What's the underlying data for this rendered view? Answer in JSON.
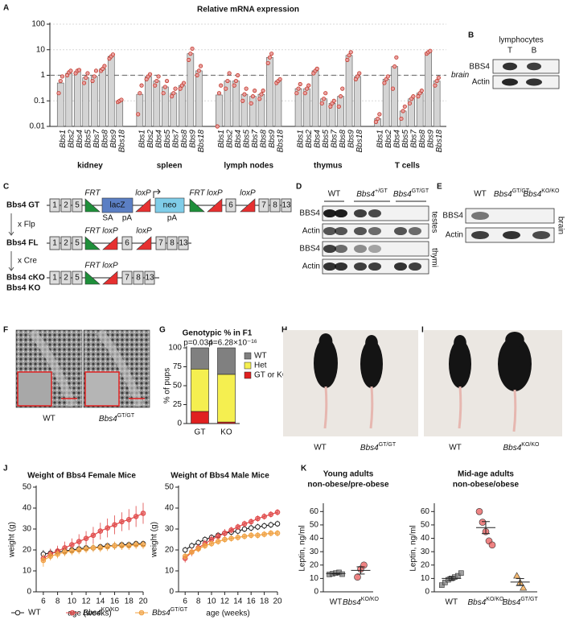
{
  "panels": [
    "A",
    "B",
    "C",
    "D",
    "E",
    "F",
    "G",
    "H",
    "I",
    "J",
    "K"
  ],
  "chart_data": [
    {
      "type": "bar",
      "title": "Relative mRNA expression",
      "log_scale": true,
      "grid": true,
      "ylim": [
        0.01,
        100
      ],
      "yticks": [
        0.01,
        0.1,
        1,
        10,
        100
      ],
      "reference_line": 1,
      "reference_label": "brain",
      "color": "#d4d4d4",
      "point_color": "#c0392b",
      "categories": [
        "Bbs1",
        "Bbs2",
        "Bbs4",
        "Bbs5",
        "Bbs7",
        "Bbs8",
        "Bbs9",
        "Bbs18"
      ],
      "series": [
        {
          "name": "kidney",
          "values": [
            0.5,
            1.2,
            1.4,
            0.8,
            0.9,
            1.8,
            5.5,
            0.1
          ],
          "points": [
            [
              0.2,
              0.6,
              0.9
            ],
            [
              1.0,
              1.3,
              1.5
            ],
            [
              1.2,
              1.5,
              1.6
            ],
            [
              0.5,
              0.8,
              1.2
            ],
            [
              0.6,
              0.9,
              1.5
            ],
            [
              1.5,
              1.8,
              2.3
            ],
            [
              4.5,
              5.5,
              6.5
            ],
            [
              0.09,
              0.1,
              0.11
            ]
          ]
        },
        {
          "name": "spleen",
          "values": [
            0.18,
            0.9,
            0.6,
            0.35,
            0.2,
            0.4,
            7,
            1.5
          ],
          "points": [
            [
              0.03,
              0.2,
              0.4
            ],
            [
              0.7,
              0.9,
              1.1
            ],
            [
              0.4,
              0.6,
              0.9
            ],
            [
              0.2,
              0.35,
              0.6
            ],
            [
              0.15,
              0.2,
              0.3
            ],
            [
              0.3,
              0.4,
              0.5
            ],
            [
              4,
              7,
              11
            ],
            [
              1,
              1.5,
              2.3
            ]
          ]
        },
        {
          "name": "lymph nodes",
          "values": [
            0.17,
            0.6,
            0.6,
            0.18,
            0.15,
            0.18,
            5,
            0.6
          ],
          "points": [
            [
              0.01,
              0.2,
              0.4
            ],
            [
              0.3,
              0.6,
              1.2
            ],
            [
              0.4,
              0.6,
              1
            ],
            [
              0.1,
              0.18,
              0.3
            ],
            [
              0.08,
              0.15,
              0.25
            ],
            [
              0.12,
              0.18,
              0.25
            ],
            [
              3,
              5,
              7
            ],
            [
              0.5,
              0.6,
              0.7
            ]
          ]
        },
        {
          "name": "thymus",
          "values": [
            0.3,
            0.3,
            1.5,
            0.12,
            0.08,
            0.15,
            6,
            0.9
          ],
          "points": [
            [
              0.2,
              0.3,
              0.45
            ],
            [
              0.2,
              0.3,
              0.4
            ],
            [
              1.2,
              1.5,
              1.8
            ],
            [
              0.08,
              0.12,
              0.2
            ],
            [
              0.06,
              0.08,
              0.1
            ],
            [
              0.06,
              0.15,
              0.3
            ],
            [
              4,
              6,
              8
            ],
            [
              0.7,
              0.9,
              1.2
            ]
          ]
        },
        {
          "name": "T cells",
          "values": [
            0.02,
            0.7,
            2.2,
            0.04,
            0.12,
            0.2,
            8,
            0.6
          ],
          "points": [
            [
              0.015,
              0.02,
              0.03
            ],
            [
              0.5,
              0.7,
              0.9
            ],
            [
              0.3,
              2.2,
              5
            ],
            [
              0.02,
              0.04,
              0.06
            ],
            [
              0.08,
              0.12,
              0.15
            ],
            [
              0.15,
              0.2,
              0.25
            ],
            [
              7,
              8,
              9
            ],
            [
              0.4,
              0.6,
              0.8
            ]
          ]
        }
      ]
    },
    {
      "type": "stacked_bar",
      "title": "Genotypic % in F1",
      "ylabel": "% of pups",
      "categories": [
        "GT",
        "KO"
      ],
      "annotations": [
        "p=0.034",
        "p=6.28×10⁻¹⁶"
      ],
      "ylim": [
        0,
        100
      ],
      "yticks": [
        0,
        25,
        50,
        75,
        100
      ],
      "legend": "right",
      "series": [
        {
          "name": "GT or KO",
          "color": "#e02020",
          "values": [
            16,
            2
          ]
        },
        {
          "name": "Het",
          "color": "#f5ef50",
          "values": [
            56,
            63
          ]
        },
        {
          "name": "WT",
          "color": "#808080",
          "values": [
            28,
            35
          ]
        }
      ]
    },
    {
      "type": "line",
      "title": "Weight of Bbs4 Female Mice",
      "xlabel": "age (weeks)",
      "ylabel": "weight (g)",
      "x": [
        6,
        7,
        8,
        9,
        10,
        11,
        12,
        13,
        14,
        15,
        16,
        17,
        18,
        19,
        20
      ],
      "xlim": [
        5,
        20
      ],
      "xticks": [
        6,
        8,
        10,
        12,
        14,
        16,
        18,
        20
      ],
      "ylim": [
        0,
        50
      ],
      "yticks": [
        0,
        10,
        20,
        30,
        40,
        50
      ],
      "legend": "bottom",
      "series": [
        {
          "name": "WT",
          "color": "#222222",
          "marker": "open",
          "values": [
            18,
            18.5,
            19,
            19.5,
            20,
            20.5,
            21,
            21,
            21.5,
            22,
            22,
            22.5,
            22.5,
            23,
            23
          ],
          "errors": [
            2,
            2,
            2,
            2,
            1.5,
            1.5,
            1.5,
            1.5,
            1.5,
            1.5,
            1.5,
            1.5,
            1.5,
            1.5,
            1.5
          ]
        },
        {
          "name": "Bbs4KO/KO",
          "color": "#e04848",
          "marker": "filled",
          "values": [
            16,
            18,
            19.5,
            21,
            22.5,
            24,
            25.5,
            27,
            29,
            30.5,
            32,
            33.5,
            34.5,
            36,
            37.5
          ],
          "errors": [
            2,
            2.5,
            2.5,
            3,
            3,
            3.5,
            3.5,
            4,
            4,
            4.5,
            4.5,
            4.5,
            5,
            5,
            5
          ]
        },
        {
          "name": "Bbs4GT/GT",
          "color": "#f0a040",
          "marker": "filled",
          "values": [
            15,
            17,
            18,
            19,
            19.5,
            20,
            20.5,
            21,
            21,
            21.5,
            22,
            22,
            22,
            22.5,
            22.5
          ],
          "errors": [
            3,
            2,
            2,
            2,
            2,
            2,
            2,
            2,
            2,
            2,
            2,
            2,
            2,
            2,
            2
          ]
        }
      ]
    },
    {
      "type": "line",
      "title": "Weight of Bbs4 Male Mice",
      "xlabel": "age (weeks)",
      "ylabel": "weight (g)",
      "x": [
        6,
        7,
        8,
        9,
        10,
        11,
        12,
        13,
        14,
        15,
        16,
        17,
        18,
        19,
        20
      ],
      "xlim": [
        5,
        20
      ],
      "xticks": [
        6,
        8,
        10,
        12,
        14,
        16,
        18,
        20
      ],
      "ylim": [
        0,
        50
      ],
      "yticks": [
        0,
        10,
        20,
        30,
        40,
        50
      ],
      "series": [
        {
          "color": "#222222",
          "marker": "open",
          "values": [
            20,
            22,
            23.5,
            25,
            26,
            27,
            28,
            28.5,
            29,
            30,
            30.5,
            31,
            31.5,
            32,
            32.5
          ],
          "errors": [
            1.5,
            1.5,
            1.5,
            1.5,
            1.5,
            1.5,
            1.5,
            1.5,
            1.5,
            1.5,
            1.5,
            1.5,
            1.5,
            1.5,
            1.5
          ]
        },
        {
          "color": "#e04848",
          "marker": "filled",
          "values": [
            16,
            19,
            21,
            23,
            25,
            26.5,
            28,
            29.5,
            31,
            32.5,
            33.5,
            35,
            36,
            37,
            38
          ],
          "errors": [
            2,
            2,
            2,
            2,
            2,
            2,
            2,
            1.5,
            1.5,
            1.5,
            1.5,
            1.5,
            1.5,
            1.5,
            1.5
          ]
        },
        {
          "color": "#f0a040",
          "marker": "filled",
          "values": [
            17,
            19,
            20.5,
            22,
            23,
            24,
            25,
            25.5,
            26,
            26.5,
            27,
            27,
            27.5,
            28,
            28
          ],
          "errors": [
            1.5,
            1.5,
            1.5,
            1.5,
            1.5,
            1.5,
            1.5,
            1.5,
            1.5,
            1.5,
            1.5,
            1.5,
            1.5,
            1.5,
            1.5
          ]
        }
      ]
    },
    {
      "type": "dot",
      "title": [
        "Young adults",
        "non-obese/pre-obese"
      ],
      "ylabel": "Leptin, ng/ml",
      "ylim": [
        0,
        65
      ],
      "yticks": [
        0,
        10,
        20,
        30,
        40,
        50,
        60
      ],
      "categories": [
        "WT",
        "Bbs4KO/KO"
      ],
      "colors": [
        "#808080",
        "#e85a5a"
      ],
      "markers": [
        "square",
        "circle"
      ],
      "points": [
        [
          13,
          13.5,
          14,
          14.5,
          13.2
        ],
        [
          11,
          17,
          20
        ]
      ],
      "means": [
        13.6,
        16
      ],
      "sem": [
        0.3,
        2.7
      ]
    },
    {
      "type": "dot",
      "title": [
        "Mid-age adults",
        "non-obese/obese"
      ],
      "ylabel": "Leptin, ng/ml",
      "ylim": [
        0,
        65
      ],
      "yticks": [
        0,
        10,
        20,
        30,
        40,
        50,
        60
      ],
      "categories": [
        "WT",
        "Bbs4KO/KO",
        "Bbs4GT/GT"
      ],
      "colors": [
        "#808080",
        "#e85a5a",
        "#f0a040"
      ],
      "markers": [
        "square",
        "circle",
        "triangle"
      ],
      "points": [
        [
          5,
          7,
          9,
          10,
          11,
          12,
          14
        ],
        [
          60,
          52,
          45,
          38,
          35
        ],
        [
          12,
          7,
          3
        ]
      ],
      "means": [
        10,
        48,
        7.3
      ],
      "sem": [
        1.2,
        4.5,
        2.6
      ]
    }
  ],
  "blot_b": {
    "title": "lymphocytes",
    "lanes": [
      "T",
      "B"
    ],
    "rows": [
      "BBS4",
      "Actin"
    ]
  },
  "diagram_c": {
    "rows": [
      {
        "label": "Bbs4 GT",
        "exons": [
          "1",
          "2",
          "5",
          "6",
          "7",
          "8",
          "13"
        ]
      },
      {
        "label": "Bbs4 FL",
        "exons": [
          "1",
          "2",
          "5",
          "6",
          "7",
          "8",
          "13"
        ]
      },
      {
        "label": "Bbs4 cKO",
        "exons": [
          "1",
          "2",
          "5",
          "7",
          "8",
          "13"
        ]
      }
    ],
    "alt_label": "Bbs4 KO",
    "steps": [
      "x Flp",
      "x Cre"
    ],
    "elements": {
      "frt": "FRT",
      "lacz": "lacZ",
      "sa": "SA",
      "pa": "pA",
      "loxp": "loxP",
      "neo": "neo"
    }
  },
  "blot_d": {
    "lanes": [
      "WT",
      "Bbs4+/GT",
      "Bbs4GT/GT"
    ],
    "rows": [
      "BBS4",
      "Actin",
      "BBS4",
      "Actin"
    ],
    "tissues": [
      "testes",
      "thymi"
    ]
  },
  "blot_e": {
    "lanes": [
      "WT",
      "Bbs4GT/GT",
      "Bbs4KO/KO"
    ],
    "rows": [
      "BBS4",
      "Actin"
    ],
    "tissue": "brain"
  },
  "photo_f": {
    "labels": [
      "WT",
      "Bbs4GT/GT"
    ]
  },
  "photo_h": {
    "labels": [
      "WT",
      "Bbs4GT/GT"
    ]
  },
  "photo_i": {
    "labels": [
      "WT",
      "Bbs4KO/KO"
    ]
  }
}
